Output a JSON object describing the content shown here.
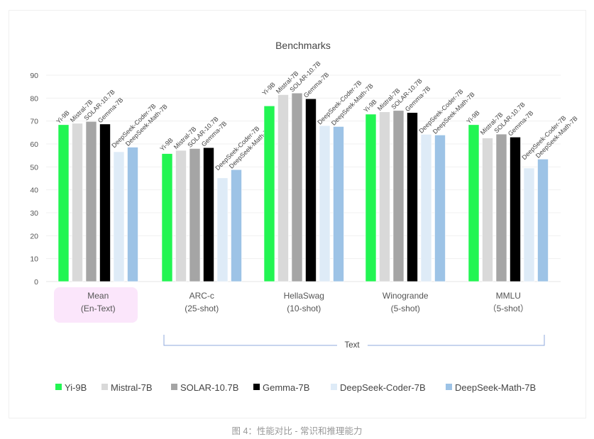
{
  "chart_data": {
    "type": "bar",
    "title": "Benchmarks",
    "xlabel": "",
    "ylabel": "",
    "ylim": [
      0,
      90
    ],
    "yticks": [
      0,
      10,
      20,
      30,
      40,
      50,
      60,
      70,
      80,
      90
    ],
    "grid": true,
    "legend_position": "bottom",
    "categories": [
      {
        "line1": "Mean",
        "line2": "(En-Text)",
        "highlight": true
      },
      {
        "line1": "ARC-c",
        "line2": "(25-shot)"
      },
      {
        "line1": "HellaSwag",
        "line2": "(10-shot)"
      },
      {
        "line1": "Winogrande",
        "line2": "(5-shot)"
      },
      {
        "line1": "MMLU",
        "line2": "（5-shot）"
      }
    ],
    "group_bracket": {
      "label": "Text",
      "from_category": 1,
      "to_category": 4
    },
    "series": [
      {
        "name": "Yi-9B",
        "color": "#22f552",
        "values": [
          68.4,
          55.8,
          76.6,
          73.0,
          68.4
        ]
      },
      {
        "name": "Mistral-7B",
        "color": "#d9d9d9",
        "values": [
          69.0,
          57.2,
          81.5,
          74.0,
          62.6
        ]
      },
      {
        "name": "SOLAR-10.7B",
        "color": "#a5a5a5",
        "values": [
          69.8,
          58.0,
          82.2,
          74.6,
          64.3
        ]
      },
      {
        "name": "Gemma-7B",
        "color": "#000000",
        "values": [
          68.7,
          58.4,
          79.7,
          73.7,
          63.0
        ]
      },
      {
        "name": "DeepSeek-Coder-7B",
        "color": "#deebf7",
        "values": [
          56.6,
          45.2,
          68.0,
          64.2,
          49.5
        ]
      },
      {
        "name": "DeepSeek-Math-7B",
        "color": "#9dc3e6",
        "values": [
          58.6,
          48.8,
          67.6,
          63.9,
          53.4
        ]
      }
    ]
  },
  "caption": "图 4：性能对比 - 常识和推理能力"
}
